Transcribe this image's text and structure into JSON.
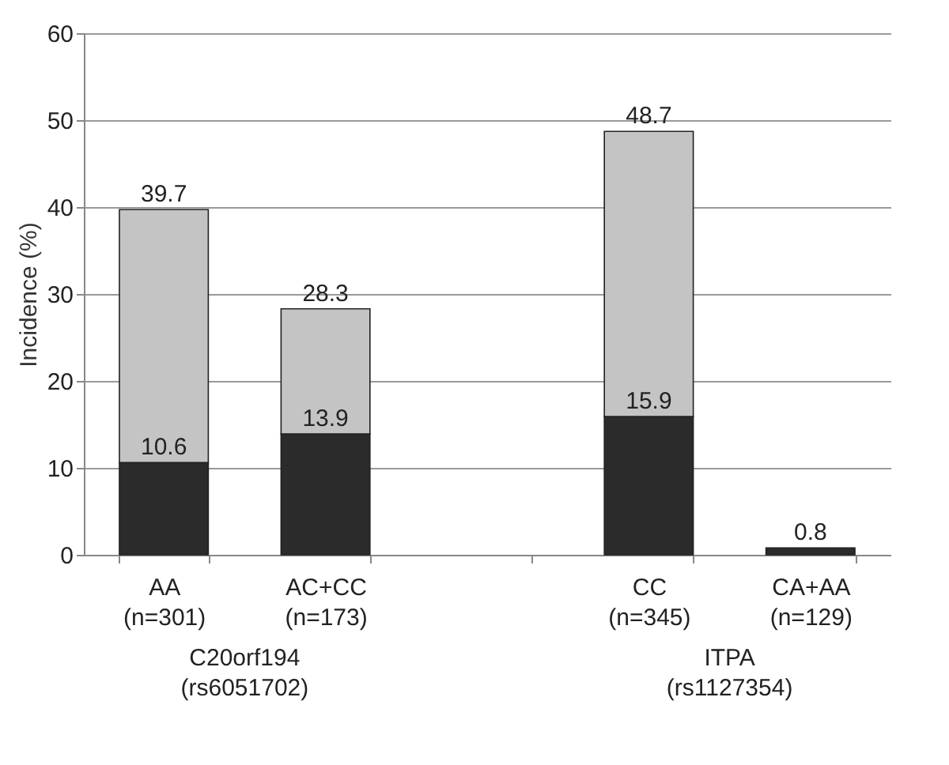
{
  "chart_data": {
    "type": "bar",
    "ylabel": "Incidence (%)",
    "categories": [
      "AA\n(n=301)",
      "AC+CC\n(n=173)",
      null,
      "CC\n(n=345)",
      "CA+AA\n(n=129)"
    ],
    "stacked": true,
    "series": [
      {
        "color": "#2b2b2b",
        "values": [
          10.6,
          13.9,
          null,
          15.9,
          0.8
        ],
        "value_labels": [
          "10.6",
          "13.9",
          null,
          "15.9",
          "0.8"
        ]
      },
      {
        "color": "#c4c4c4",
        "values": [
          29.1,
          14.4,
          null,
          32.8,
          null
        ]
      }
    ],
    "totals": [
      "39.7",
      "28.3",
      null,
      "48.7",
      null
    ],
    "ylim": [
      0,
      60
    ],
    "yticks": [
      0,
      10,
      20,
      30,
      40,
      50,
      60
    ],
    "grid": "y",
    "annotations": [
      "C20orf194\n(rs6051702)",
      "ITPA\n(rs1127354)"
    ]
  }
}
